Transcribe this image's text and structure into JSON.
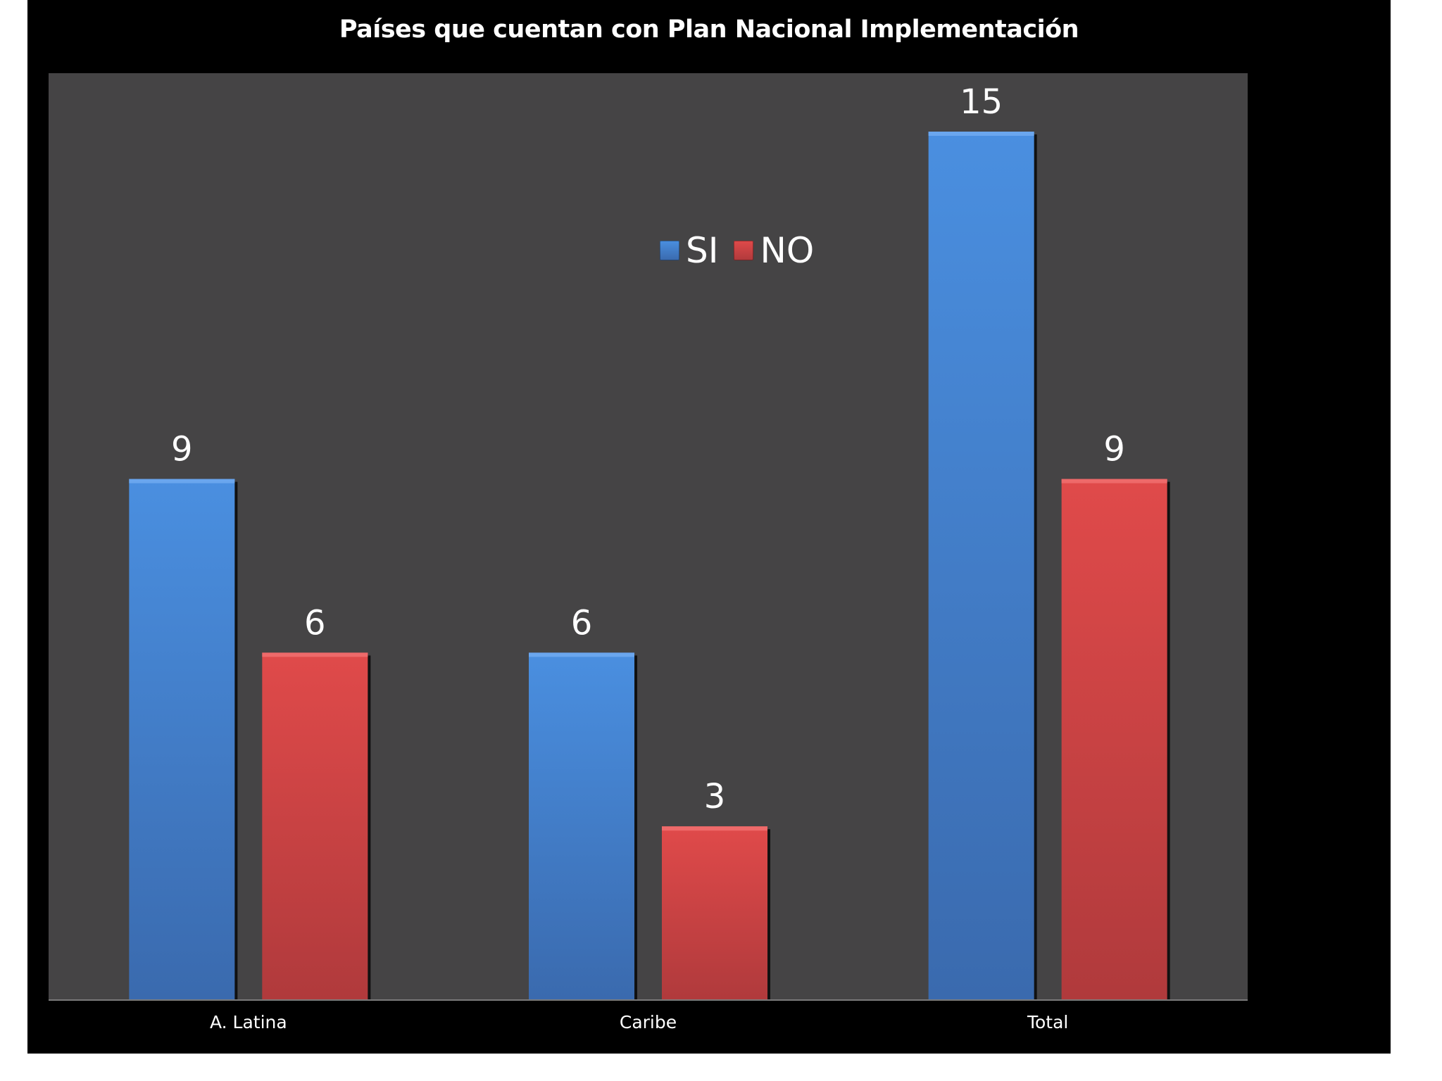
{
  "chart_data": {
    "type": "bar",
    "title": "Países que cuentan con Plan Nacional Implementación",
    "categories": [
      "A. Latina",
      "Caribe",
      "Total"
    ],
    "series": [
      {
        "name": "SI",
        "values": [
          9,
          6,
          15
        ],
        "color": "#4a8ad6"
      },
      {
        "name": "NO",
        "values": [
          6,
          3,
          9
        ],
        "color": "#d94848"
      }
    ],
    "xlabel": "",
    "ylabel": "",
    "ylim": [
      0,
      16
    ],
    "grid": false,
    "legend_position": "top-center",
    "data_labels": true,
    "colors": {
      "slide_background": "#000000",
      "plot_background": "#454445",
      "text": "#ffffff"
    }
  }
}
